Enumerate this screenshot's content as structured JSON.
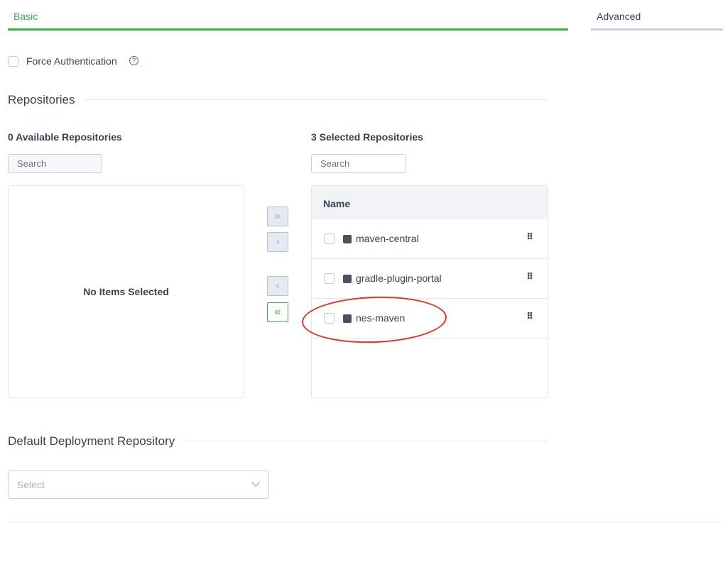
{
  "tabs": [
    {
      "label": "Basic",
      "active": true
    },
    {
      "label": "Advanced",
      "active": false
    }
  ],
  "accent": "#3fae49",
  "force_auth": {
    "label": "Force Authentication",
    "checked": false,
    "icon": "help-circle-icon"
  },
  "repositories": {
    "title": "Repositories",
    "available": {
      "title": "0 Available Repositories",
      "search_placeholder": "Search",
      "empty_text": "No Items Selected"
    },
    "selected": {
      "title": "3 Selected Repositories",
      "search_placeholder": "Search",
      "column": "Name",
      "items": [
        {
          "name": "maven-central"
        },
        {
          "name": "gradle-plugin-portal"
        },
        {
          "name": "nes-maven",
          "highlighted": true
        }
      ]
    },
    "transfer_buttons": [
      "move-all-right",
      "move-right",
      "move-left",
      "move-all-left"
    ]
  },
  "deployment": {
    "title": "Default Deployment Repository",
    "select_placeholder": "Select"
  }
}
